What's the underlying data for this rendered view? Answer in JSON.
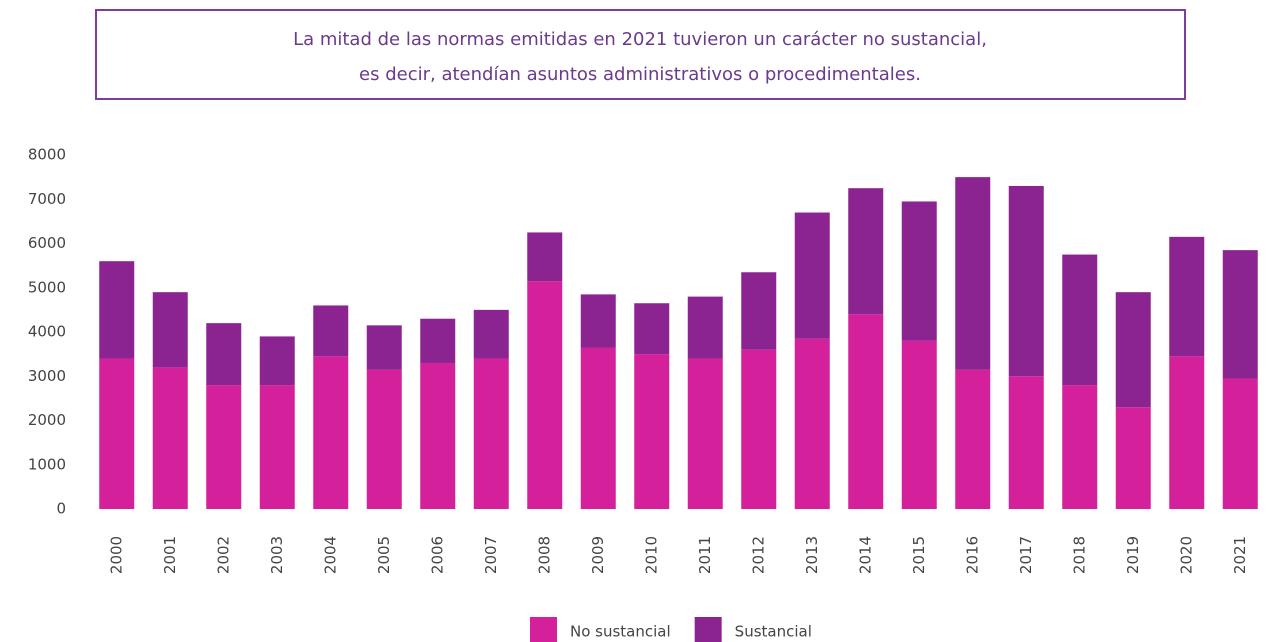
{
  "chart_data": {
    "type": "stacked_bar",
    "title": [
      "La mitad de las normas emitidas en 2021 tuvieron un carácter no sustancial,",
      "es decir, atendían asuntos administrativos o procedimentales."
    ],
    "categories": [
      "2000",
      "2001",
      "2002",
      "2003",
      "2004",
      "2005",
      "2006",
      "2007",
      "2008",
      "2009",
      "2010",
      "2011",
      "2012",
      "2013",
      "2014",
      "2015",
      "2016",
      "2017",
      "2018",
      "2019",
      "2020",
      "2021"
    ],
    "series": [
      {
        "name": "No sustancial",
        "color": "#d4219b",
        "values": [
          3400,
          3200,
          2800,
          2800,
          3450,
          3150,
          3300,
          3400,
          5150,
          3650,
          3500,
          3400,
          3600,
          3850,
          4400,
          3800,
          3150,
          3000,
          2800,
          2300,
          3450,
          2950
        ]
      },
      {
        "name": "Sustancial",
        "color": "#8b2391",
        "values": [
          2200,
          1700,
          1400,
          1100,
          1150,
          1000,
          1000,
          1100,
          1100,
          1200,
          1150,
          1400,
          1750,
          2850,
          2850,
          3150,
          4350,
          4300,
          2950,
          2600,
          2700,
          2900
        ]
      }
    ],
    "ylim": [
      0,
      8000
    ],
    "yticks": [
      0,
      1000,
      2000,
      3000,
      4000,
      5000,
      6000,
      7000,
      8000
    ],
    "grid": false
  }
}
